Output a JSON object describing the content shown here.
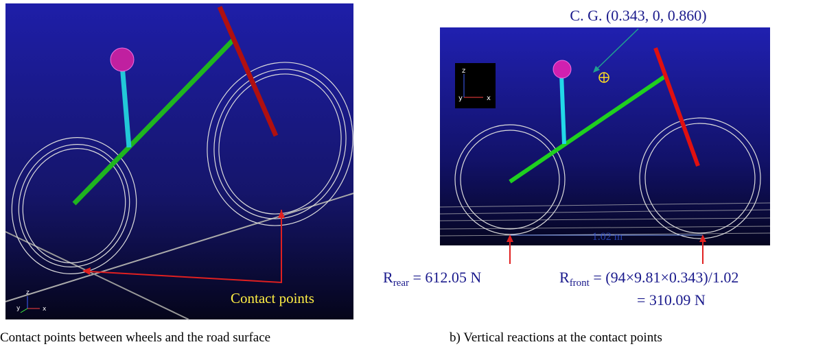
{
  "panel_a": {
    "caption": "Contact points between wheels and the road surface",
    "annotation": "Contact points",
    "axes": {
      "z": "z",
      "y": "y",
      "x": "x"
    }
  },
  "panel_b": {
    "caption": "b) Vertical reactions at the contact points",
    "cg_label": "C. G. (0.343, 0, 0.860)",
    "wheelbase": "1.02 m",
    "axes": {
      "z": "z",
      "y": "y",
      "x": "x"
    },
    "rear_reaction": {
      "symbol": "R",
      "subscript": "rear",
      "text": " = 612.05 N"
    },
    "front_reaction": {
      "symbol": "R",
      "subscript": "front",
      "text": " = (94×9.81×0.343)/1.02",
      "result": "= 310.09 N"
    }
  }
}
